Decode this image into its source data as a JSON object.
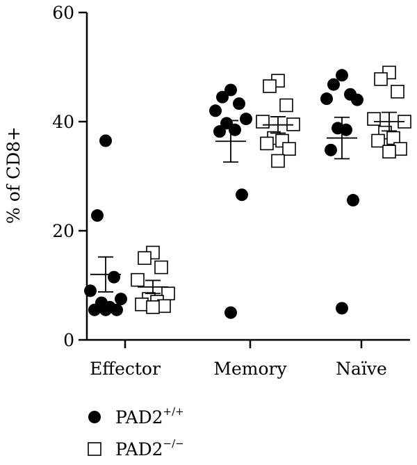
{
  "chart_data": {
    "type": "scatter",
    "title": "",
    "xlabel": "",
    "ylabel": "% of CD8+",
    "ylim": [
      0,
      60
    ],
    "yticks": [
      0,
      20,
      40,
      60
    ],
    "categories": [
      "Effector",
      "Memory",
      "Naïve"
    ],
    "legend_position": "bottom-left",
    "series": [
      {
        "name": "PAD2",
        "name_superscript": "+/+",
        "marker": "filled-circle",
        "color": "#000000",
        "groups": [
          {
            "category": "Effector",
            "values": [
              36.5,
              22.8,
              11.5,
              9.0,
              7.5,
              6.8,
              6.0,
              5.5,
              5.5,
              5.5
            ],
            "mean": 12.0,
            "sem": 3.2
          },
          {
            "category": "Memory",
            "values": [
              45.8,
              44.5,
              43.3,
              42.0,
              40.5,
              39.7,
              38.5,
              38.2,
              26.6,
              5.0
            ],
            "mean": 36.4,
            "sem": 3.8
          },
          {
            "category": "Naïve",
            "values": [
              48.5,
              46.8,
              45.0,
              44.2,
              44.0,
              38.8,
              38.5,
              34.8,
              25.6,
              5.8
            ],
            "mean": 37.0,
            "sem": 3.8
          }
        ]
      },
      {
        "name": "PAD2",
        "name_superscript": "−/−",
        "marker": "open-square",
        "color": "#000000",
        "groups": [
          {
            "category": "Effector",
            "values": [
              16.0,
              15.0,
              13.3,
              11.0,
              8.5,
              7.5,
              7.0,
              6.5,
              6.2,
              6.0
            ],
            "mean": 9.7,
            "sem": 1.2
          },
          {
            "category": "Memory",
            "values": [
              47.5,
              46.5,
              43.0,
              40.0,
              39.5,
              37.0,
              36.5,
              36.0,
              35.0,
              32.8
            ],
            "mean": 39.4,
            "sem": 1.5
          },
          {
            "category": "Naïve",
            "values": [
              49.0,
              47.8,
              45.5,
              40.5,
              40.0,
              38.0,
              37.0,
              36.5,
              35.0,
              34.5
            ],
            "mean": 40.0,
            "sem": 1.7
          }
        ]
      }
    ]
  }
}
